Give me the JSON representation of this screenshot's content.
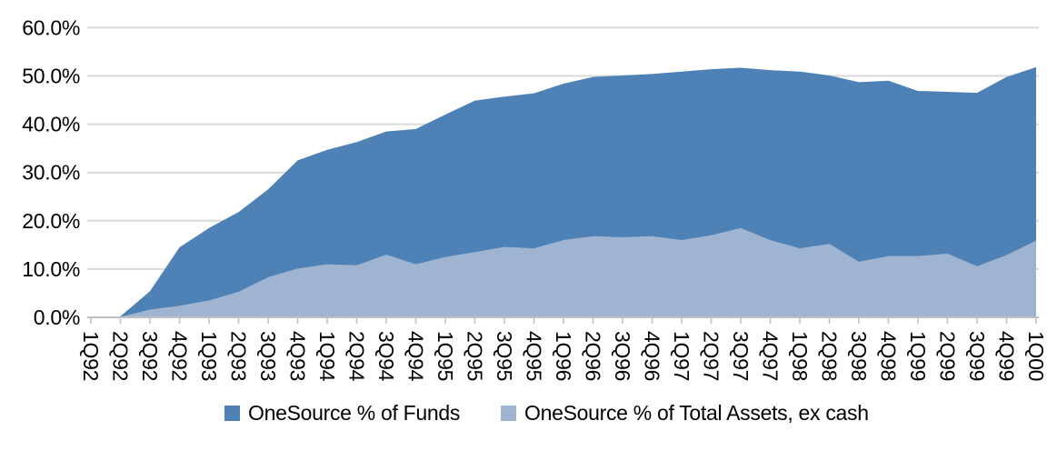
{
  "chart_data": {
    "type": "area",
    "mode": "overlapping",
    "title": "",
    "xlabel": "",
    "ylabel": "",
    "categories": [
      "1Q92",
      "2Q92",
      "3Q92",
      "4Q92",
      "1Q93",
      "2Q93",
      "3Q93",
      "4Q93",
      "1Q94",
      "2Q94",
      "3Q94",
      "4Q94",
      "1Q95",
      "2Q95",
      "3Q95",
      "4Q95",
      "1Q96",
      "2Q96",
      "3Q96",
      "4Q96",
      "1Q97",
      "2Q97",
      "3Q97",
      "4Q97",
      "1Q98",
      "2Q98",
      "3Q98",
      "4Q98",
      "1Q99",
      "2Q99",
      "3Q99",
      "4Q99",
      "1Q00"
    ],
    "series": [
      {
        "name": "OneSource % of Funds",
        "color": "#4E81B6",
        "values": [
          0,
          0.2,
          5.4,
          14.5,
          18.5,
          21.8,
          26.5,
          32.5,
          34.7,
          36.3,
          38.5,
          39.0,
          42.0,
          44.9,
          45.7,
          46.4,
          48.4,
          49.8,
          50.1,
          50.4,
          50.9,
          51.4,
          51.7,
          51.2,
          50.9,
          50.1,
          48.7,
          49.0,
          46.9,
          46.7,
          46.5,
          49.8,
          51.8
        ]
      },
      {
        "name": "OneSource % of Total Assets, ex cash",
        "color": "#9EB4D0",
        "values": [
          0,
          0.1,
          1.6,
          2.4,
          3.5,
          5.3,
          8.3,
          10.1,
          11.0,
          10.8,
          13.0,
          11.0,
          12.5,
          13.5,
          14.6,
          14.3,
          16.0,
          16.8,
          16.6,
          16.8,
          16.0,
          17.0,
          18.5,
          16.0,
          14.3,
          15.2,
          11.5,
          12.7,
          12.7,
          13.2,
          10.6,
          12.9,
          15.9
        ]
      }
    ],
    "y_tick_labels": [
      "0.0%",
      "10.0%",
      "20.0%",
      "30.0%",
      "40.0%",
      "50.0%",
      "60.0%"
    ],
    "ylim": [
      0,
      60
    ],
    "ytick_step": 10,
    "grid": "horizontal",
    "grid_color": "#D9D9D9",
    "axis_color": "#BFBFBF",
    "text_color": "#000000",
    "legend_position": "bottom",
    "x_label_rotation": 90
  }
}
